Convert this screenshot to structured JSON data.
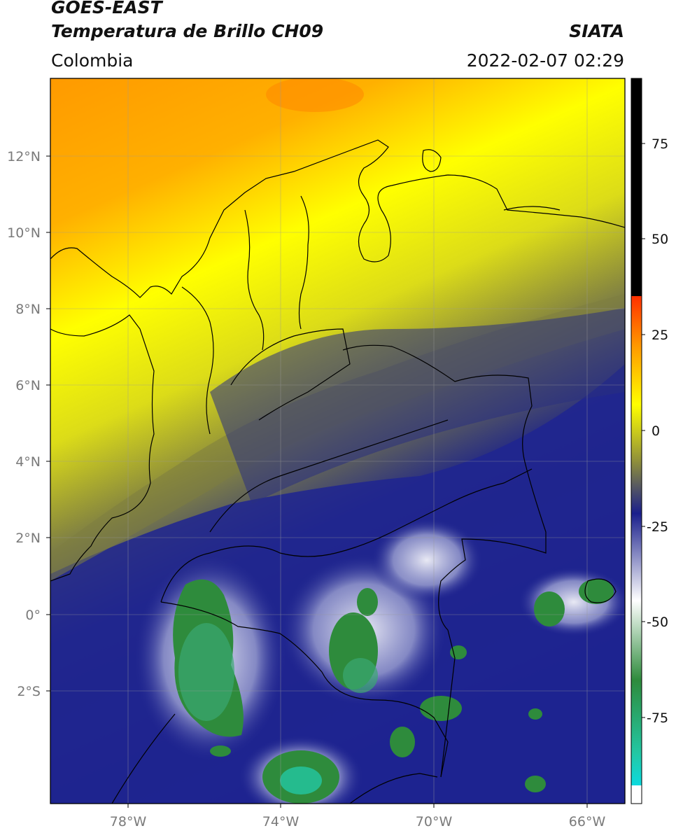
{
  "header": {
    "title_line1": "GOES-EAST",
    "title_line2": "Temperatura de Brillo CH09",
    "region": "Colombia",
    "source": "SIATA",
    "datetime": "2022-02-07 02:29"
  },
  "map": {
    "lon_ticks": [
      "78°W",
      "74°W",
      "70°W",
      "66°W"
    ],
    "lat_ticks": [
      "12°N",
      "10°N",
      "8°N",
      "6°N",
      "4°N",
      "2°N",
      "0°",
      "2°S"
    ],
    "lon_range": [
      -80,
      -65
    ],
    "lat_range": [
      -4.3,
      14.0
    ]
  },
  "colorbar": {
    "ticks": [
      "75",
      "50",
      "25",
      "0",
      "-25",
      "-50",
      "-75"
    ],
    "range": [
      -100,
      90
    ],
    "colors": {
      "warm": "#000000",
      "hot": "#ff3000",
      "orange": "#ff9a00",
      "yellow": "#ffff00",
      "olive": "#8c8c3c",
      "navy": "#1a1f8c",
      "white": "#ffffff",
      "green": "#2e8b3c",
      "teal": "#23c7a3",
      "cyan": "#00e5ff"
    }
  }
}
